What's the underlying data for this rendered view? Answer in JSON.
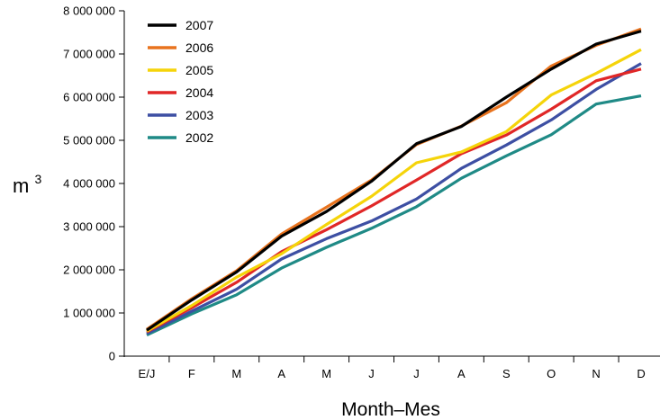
{
  "chart_data": {
    "type": "line",
    "title": "",
    "xlabel": "Month–Mes",
    "ylabel": "m",
    "ylabel_superscript": "3",
    "categories": [
      "E/J",
      "F",
      "M",
      "A",
      "M",
      "J",
      "J",
      "A",
      "S",
      "O",
      "N",
      "D"
    ],
    "y_ticks": [
      0,
      1000000,
      2000000,
      3000000,
      4000000,
      5000000,
      6000000,
      7000000,
      8000000
    ],
    "y_tick_labels": [
      "0",
      "1 000 000",
      "2 000 000",
      "3 000 000",
      "4 000 000",
      "5 000 000",
      "6 000 000",
      "7 000 000",
      "8 000 000"
    ],
    "ylim": [
      0,
      8000000
    ],
    "grid": false,
    "legend_position": "top-left",
    "series": [
      {
        "name": "2007",
        "color": "#000000",
        "values": [
          600000,
          1300000,
          1950000,
          2780000,
          3350000,
          4050000,
          4920000,
          5320000,
          6000000,
          6650000,
          7230000,
          7530000
        ]
      },
      {
        "name": "2006",
        "color": "#e8731e",
        "values": [
          620000,
          1330000,
          1980000,
          2830000,
          3450000,
          4080000,
          4900000,
          5330000,
          5870000,
          6720000,
          7200000,
          7580000
        ]
      },
      {
        "name": "2005",
        "color": "#f5d40a",
        "values": [
          580000,
          1170000,
          1830000,
          2370000,
          3050000,
          3700000,
          4480000,
          4730000,
          5200000,
          6050000,
          6550000,
          7100000
        ]
      },
      {
        "name": "2004",
        "color": "#e02727",
        "values": [
          560000,
          1120000,
          1710000,
          2420000,
          2930000,
          3480000,
          4080000,
          4690000,
          5120000,
          5720000,
          6380000,
          6650000
        ]
      },
      {
        "name": "2003",
        "color": "#3d4fa3",
        "values": [
          520000,
          1040000,
          1550000,
          2250000,
          2720000,
          3130000,
          3640000,
          4350000,
          4890000,
          5470000,
          6180000,
          6780000
        ]
      },
      {
        "name": "2002",
        "color": "#1f8a86",
        "values": [
          490000,
          980000,
          1420000,
          2040000,
          2520000,
          2960000,
          3460000,
          4120000,
          4640000,
          5130000,
          5840000,
          6030000
        ]
      }
    ],
    "legend_order": [
      "2007",
      "2006",
      "2005",
      "2004",
      "2003",
      "2002"
    ]
  }
}
